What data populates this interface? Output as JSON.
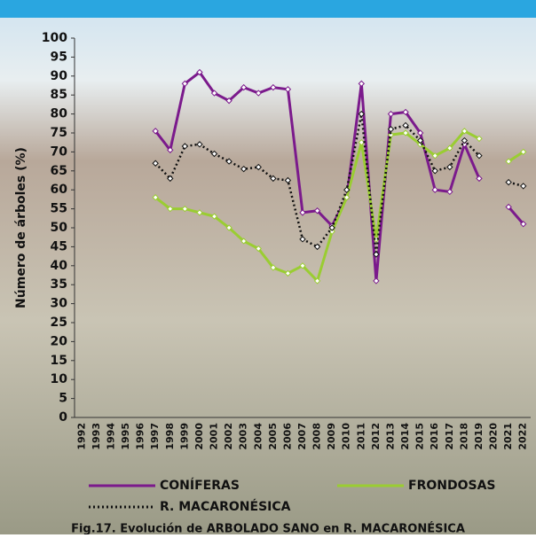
{
  "chart_data": {
    "type": "line",
    "caption": "Fig.17. Evolución de ARBOLADO SANO en R. MACARONÉSICA",
    "y_label": "Número de árboles (%)",
    "categories": [
      "1992",
      "1993",
      "1994",
      "1995",
      "1996",
      "1997",
      "1998",
      "1999",
      "2000",
      "2001",
      "2002",
      "2003",
      "2004",
      "2005",
      "2006",
      "2007",
      "2008",
      "2009",
      "2010",
      "2011",
      "2012",
      "2013",
      "2014",
      "2015",
      "2016",
      "2017",
      "2018",
      "2019",
      "2020",
      "2021",
      "2022"
    ],
    "series": [
      {
        "name": "CONÍFERAS",
        "color": "#7b1a8c",
        "dash": false,
        "values": [
          null,
          null,
          null,
          null,
          null,
          75.5,
          70.5,
          88,
          91,
          85.5,
          83.5,
          87,
          85.5,
          87,
          86.5,
          54,
          54.5,
          50.5,
          58,
          88,
          36,
          80,
          80.5,
          75,
          60,
          59.5,
          72,
          63,
          null,
          55.5,
          51
        ]
      },
      {
        "name": "FRONDOSAS",
        "color": "#9acd32",
        "dash": false,
        "values": [
          null,
          null,
          null,
          null,
          null,
          58,
          55,
          55,
          54,
          53,
          50,
          46.5,
          44.5,
          39.5,
          38,
          40,
          36,
          49,
          58,
          72.5,
          47,
          74.5,
          75,
          72,
          69,
          71,
          75.5,
          73.5,
          null,
          67.5,
          70
        ]
      },
      {
        "name": "R. MACARONÉSICA",
        "color": "#111111",
        "dash": true,
        "values": [
          null,
          null,
          null,
          null,
          null,
          67,
          63,
          71.5,
          72,
          69.5,
          67.5,
          65.5,
          66,
          63,
          62.5,
          47,
          45,
          50,
          60,
          80,
          43,
          76,
          77,
          73,
          65,
          66,
          73,
          69,
          null,
          62,
          61
        ]
      }
    ],
    "ylim": [
      0,
      100
    ],
    "yticks": [
      0,
      5,
      10,
      15,
      20,
      25,
      30,
      35,
      40,
      45,
      50,
      55,
      60,
      65,
      70,
      75,
      80,
      85,
      90,
      95,
      100
    ]
  }
}
